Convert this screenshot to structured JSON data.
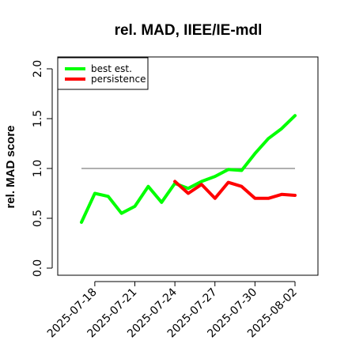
{
  "chart_data": {
    "type": "line",
    "title": "rel. MAD, IIEE/IE-mdl",
    "xlabel": "",
    "ylabel": "rel. MAD score",
    "ylim": [
      0,
      2
    ],
    "y_ticks": [
      "0.0",
      "0.5",
      "1.0",
      "1.5",
      "2.0"
    ],
    "x": [
      "2025-07-17",
      "2025-07-18",
      "2025-07-19",
      "2025-07-20",
      "2025-07-21",
      "2025-07-22",
      "2025-07-23",
      "2025-07-24",
      "2025-07-25",
      "2025-07-26",
      "2025-07-27",
      "2025-07-28",
      "2025-07-29",
      "2025-07-30",
      "2025-07-31",
      "2025-08-01",
      "2025-08-02"
    ],
    "x_ticks": [
      "2025-07-18",
      "2025-07-21",
      "2025-07-24",
      "2025-07-27",
      "2025-07-30",
      "2025-08-02"
    ],
    "reference_line": 1.0,
    "series": [
      {
        "name": "best est.",
        "color": "#00ff00",
        "values": [
          0.46,
          0.75,
          0.72,
          0.55,
          0.62,
          0.82,
          0.66,
          0.85,
          0.8,
          0.87,
          0.92,
          0.99,
          0.98,
          1.15,
          1.3,
          1.4,
          1.53
        ]
      },
      {
        "name": "persistence",
        "color": "#ff0000",
        "values": [
          null,
          null,
          null,
          null,
          null,
          null,
          null,
          0.87,
          0.75,
          0.84,
          0.7,
          0.86,
          0.82,
          0.7,
          0.7,
          0.74,
          0.73
        ]
      }
    ],
    "reference_color": "#808080",
    "grid": false,
    "legend_position": "top-left"
  }
}
